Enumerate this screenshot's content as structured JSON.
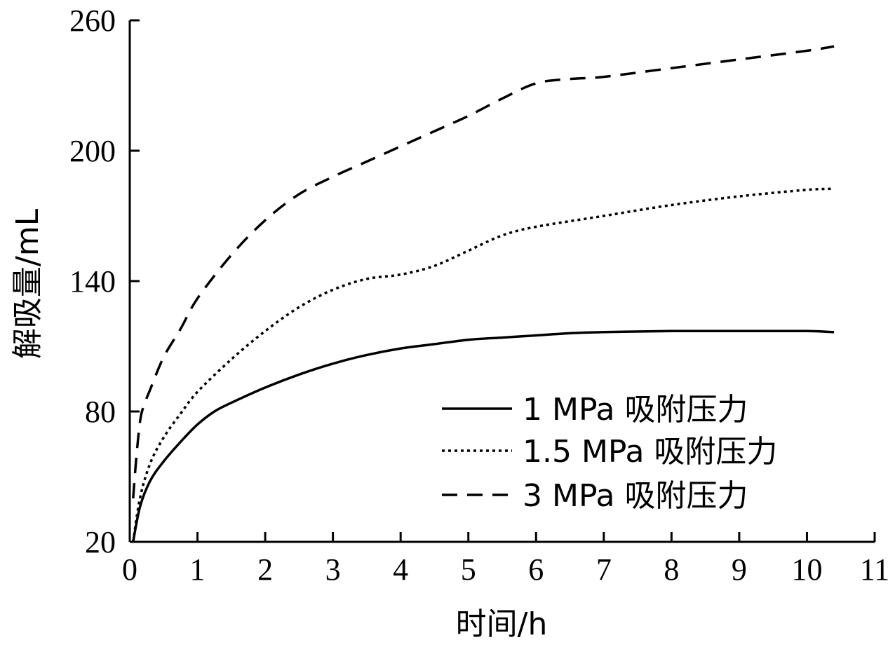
{
  "chart_data": {
    "type": "line",
    "xlabel": "时间/h",
    "ylabel": "解吸量/mL",
    "xlim": [
      0,
      11
    ],
    "ylim": [
      20,
      260
    ],
    "x_ticks": [
      0,
      1,
      2,
      3,
      4,
      5,
      6,
      7,
      8,
      9,
      10,
      11
    ],
    "y_ticks": [
      20,
      80,
      140,
      200,
      260
    ],
    "grid": false,
    "legend_position": "bottom-right",
    "series": [
      {
        "name": "1 MPa 吸附压力",
        "style": "solid",
        "x": [
          0.05,
          0.15,
          0.3,
          0.5,
          0.75,
          1.0,
          1.25,
          1.5,
          2.0,
          2.5,
          3.0,
          3.5,
          4.0,
          4.5,
          5.0,
          5.5,
          6.0,
          6.5,
          7.0,
          8.0,
          9.0,
          10.0,
          10.4
        ],
        "y": [
          20,
          36,
          48,
          57,
          66,
          74,
          80,
          84,
          91,
          97,
          102,
          106,
          109,
          111,
          113,
          114,
          115,
          116,
          116.5,
          117,
          117,
          117,
          116.5
        ]
      },
      {
        "name": "1.5 MPa 吸附压力",
        "style": "dotted",
        "x": [
          0.05,
          0.15,
          0.3,
          0.5,
          0.75,
          1.0,
          1.5,
          2.0,
          2.5,
          3.0,
          3.5,
          4.0,
          4.5,
          5.0,
          5.5,
          6.0,
          7.0,
          8.0,
          9.0,
          10.0,
          10.4
        ],
        "y": [
          20,
          40,
          56,
          68,
          79,
          89,
          104,
          117,
          128,
          136,
          141,
          143,
          147,
          154,
          161,
          165,
          170,
          175,
          179,
          182,
          182.5
        ]
      },
      {
        "name": "3 MPa 吸附压力",
        "style": "dashed",
        "x": [
          0.05,
          0.1,
          0.15,
          0.2,
          0.3,
          0.5,
          0.75,
          1.0,
          1.5,
          2.0,
          2.5,
          3.0,
          3.5,
          4.0,
          4.5,
          5.0,
          5.5,
          6.0,
          6.5,
          7.0,
          8.0,
          9.0,
          10.0,
          10.4
        ],
        "y": [
          40,
          60,
          75,
          82,
          90,
          105,
          118,
          132,
          152,
          168,
          180,
          188,
          195,
          202,
          209,
          216,
          224,
          231,
          233,
          234,
          238,
          242,
          246,
          248
        ]
      }
    ]
  }
}
